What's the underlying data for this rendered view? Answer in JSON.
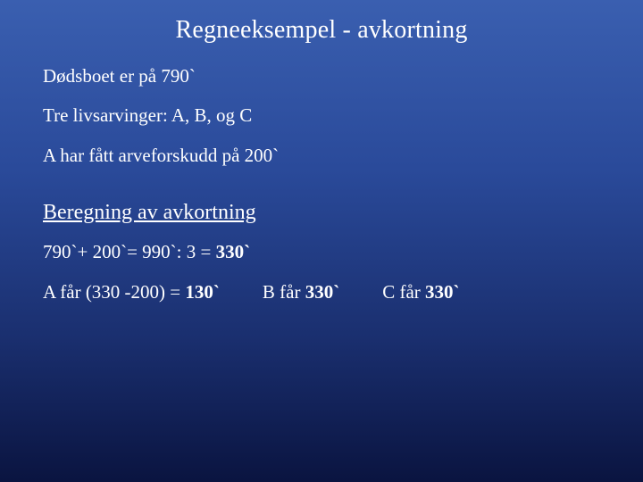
{
  "slide": {
    "background_gradient": [
      "#3a5fb0",
      "#2a4a9a",
      "#1a2f6f",
      "#0a1440"
    ],
    "text_color": "#ffffff",
    "font_family": "Times New Roman",
    "title": "Regneeksempel - avkortning",
    "title_fontsize": 28,
    "body_fontsize": 21,
    "subheading_fontsize": 24,
    "lines": {
      "l1": "Dødsboet er på 790`",
      "l2": "Tre livsarvinger: A, B, og C",
      "l3": "A har fått arveforskudd på 200`"
    },
    "subheading": "Beregning av avkortning",
    "calc": {
      "prefix": "790`+ 200`= 990`: 3 = ",
      "bold": "330`"
    },
    "results": {
      "a_prefix": "A får (330 -200) = ",
      "a_bold": "130`",
      "b_prefix": "B får  ",
      "b_bold": "330`",
      "c_prefix": "C får ",
      "c_bold": "330`"
    }
  }
}
